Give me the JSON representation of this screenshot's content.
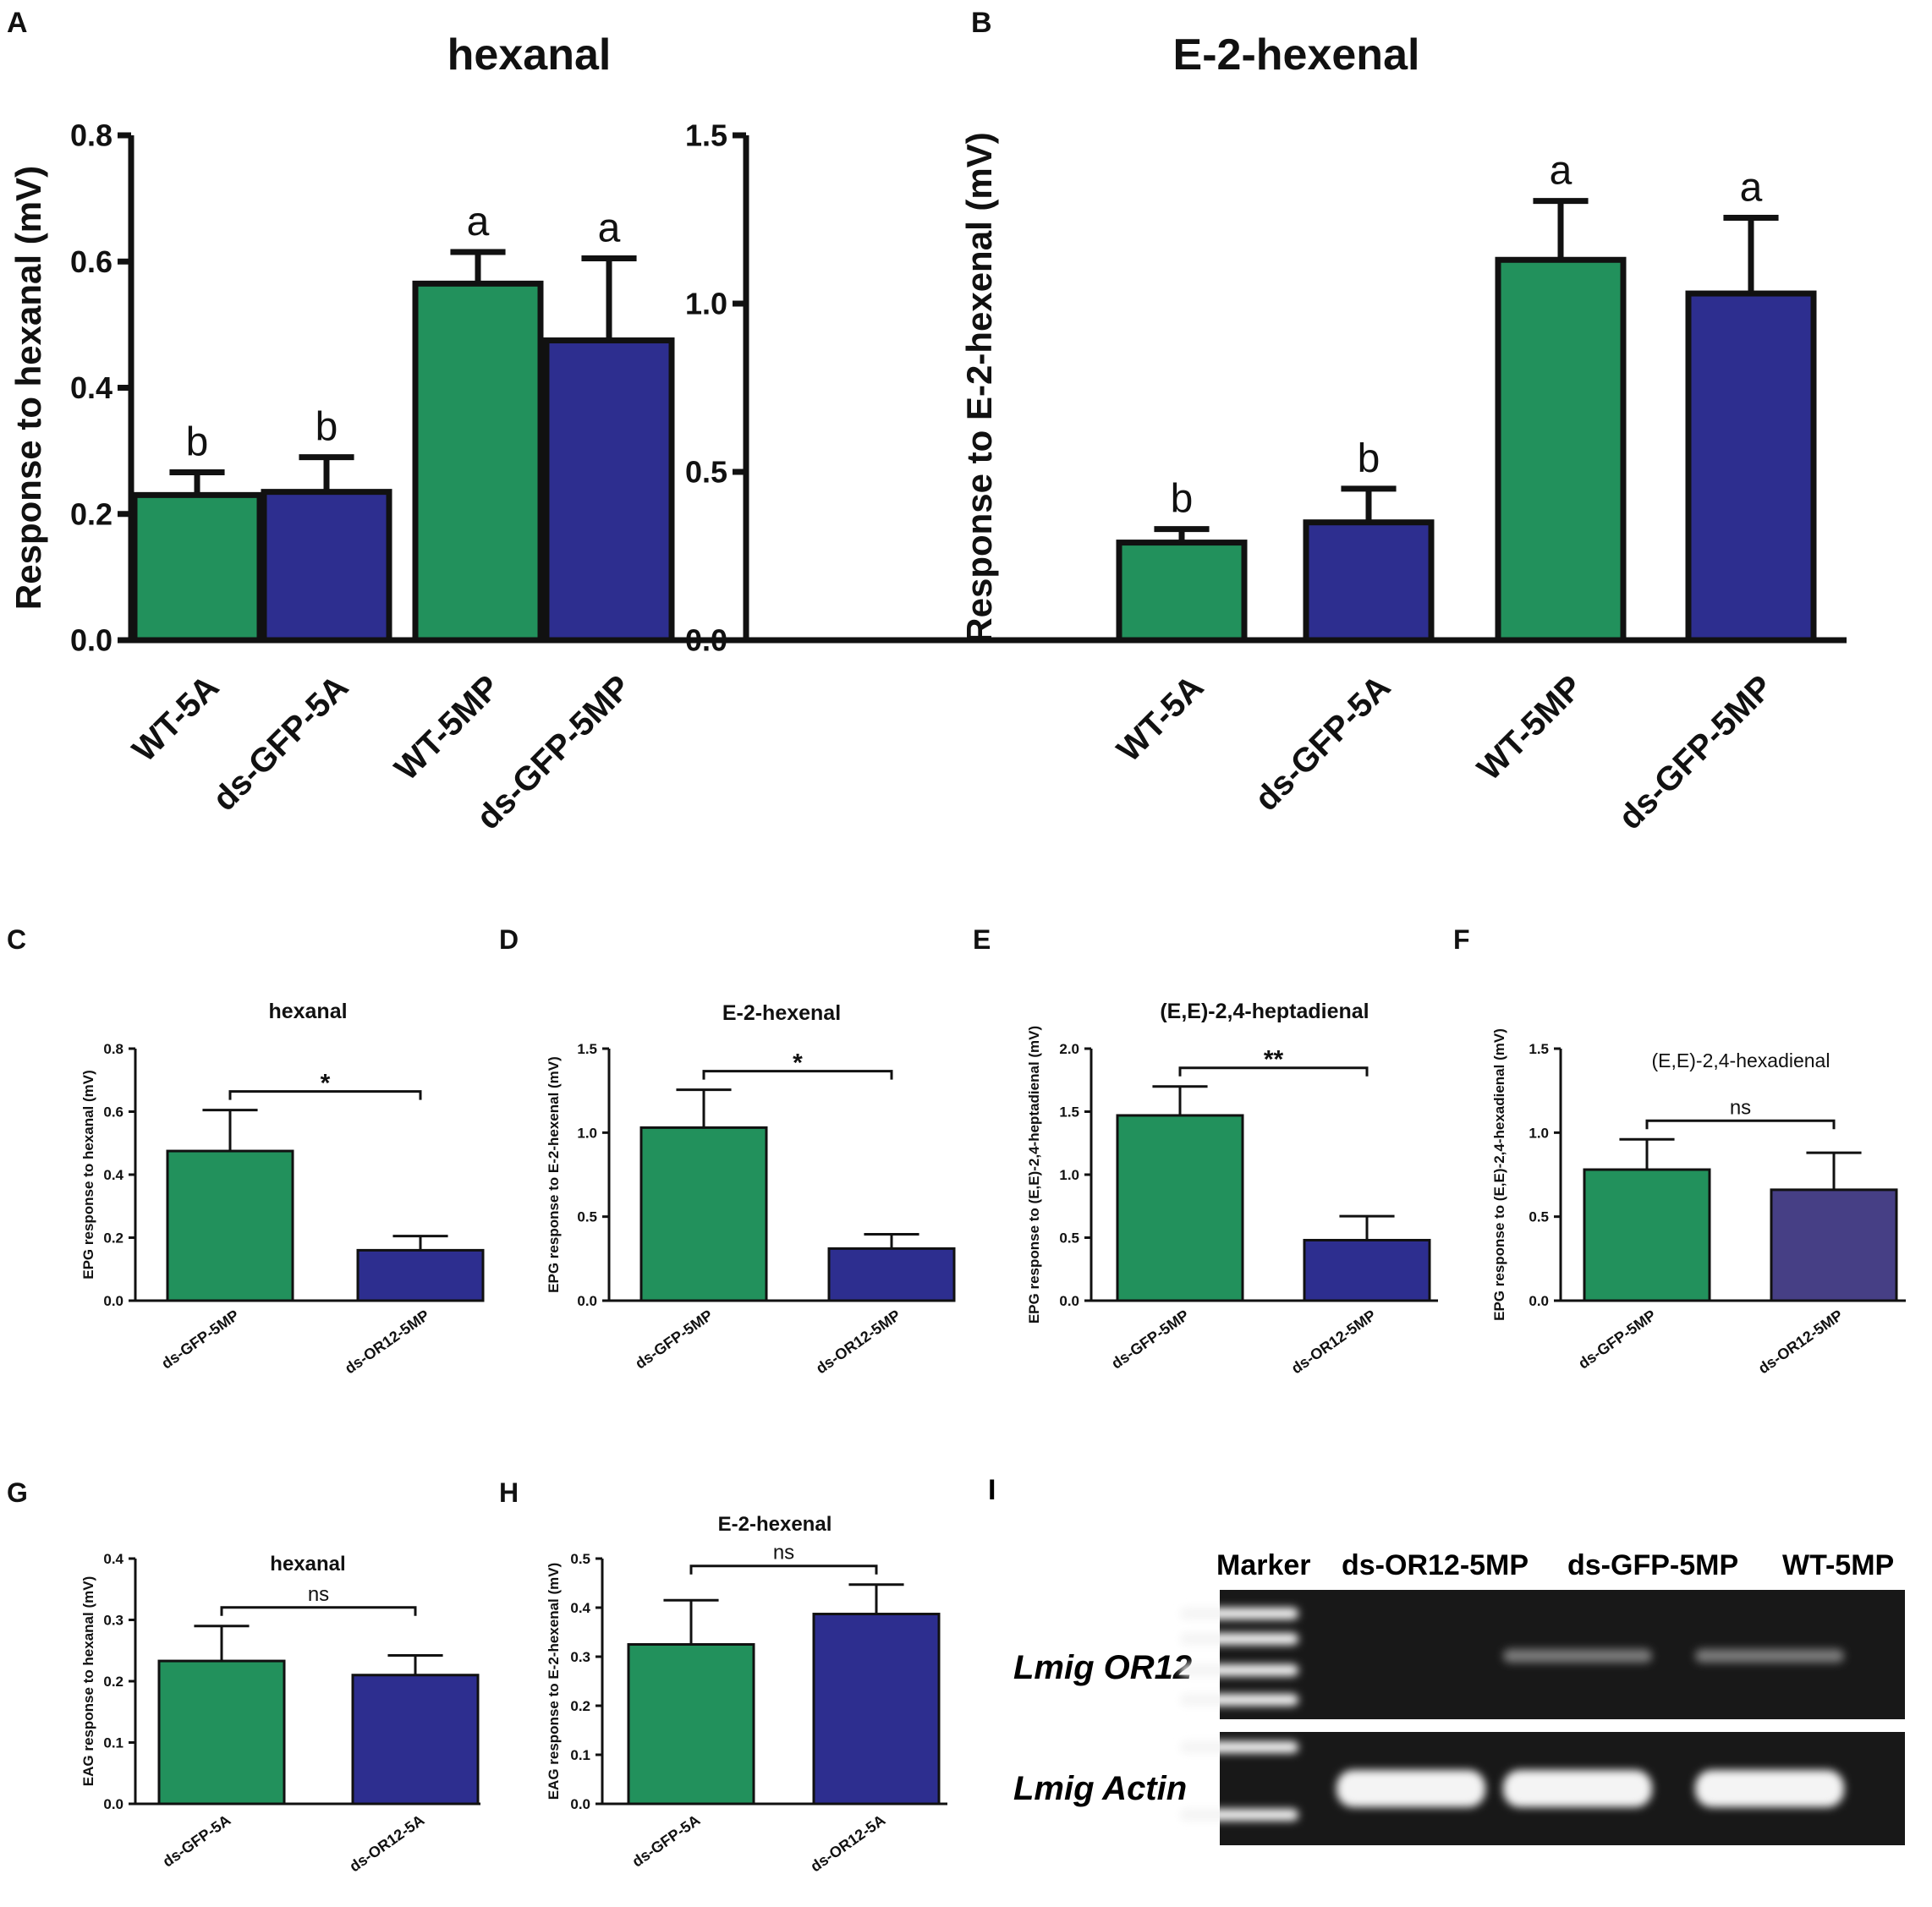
{
  "colors": {
    "green": "#22915c",
    "blue": "#2d2e8f",
    "purple": "#463f85",
    "axis": "#111111",
    "gel_bg": "#181818",
    "band": "#f4f4f4"
  },
  "chart_data": [
    {
      "panel": "A",
      "type": "bar",
      "title": "hexanal",
      "ylabel": "Response to hexanal (mV)",
      "xlabel": "",
      "categories": [
        "WT-5A",
        "ds-GFP-5A",
        "WT-5MP",
        "ds-GFP-5MP"
      ],
      "values": [
        0.23,
        0.235,
        0.565,
        0.475
      ],
      "errors": [
        0.036,
        0.055,
        0.05,
        0.13
      ],
      "bar_colors": [
        "green",
        "blue",
        "green",
        "blue"
      ],
      "letters": [
        "b",
        "b",
        "a",
        "a"
      ],
      "ylim": [
        0,
        0.8
      ],
      "yticks": [
        "0.0",
        "0.2",
        "0.4",
        "0.6",
        "0.8"
      ],
      "grid": false
    },
    {
      "panel": "B",
      "type": "bar",
      "title": "E-2-hexenal",
      "ylabel": "Response to E-2-hexenal (mV)",
      "xlabel": "",
      "categories": [
        "WT-5A",
        "ds-GFP-5A",
        "WT-5MP",
        "ds-GFP-5MP"
      ],
      "values": [
        0.29,
        0.35,
        1.13,
        1.03
      ],
      "errors": [
        0.04,
        0.1,
        0.175,
        0.225
      ],
      "bar_colors": [
        "green",
        "blue",
        "green",
        "blue"
      ],
      "letters": [
        "b",
        "b",
        "a",
        "a"
      ],
      "ylim": [
        0,
        1.5
      ],
      "yticks": [
        "0.0",
        "0.5",
        "1.0",
        "1.5"
      ],
      "grid": false
    },
    {
      "panel": "C",
      "type": "bar",
      "title": "hexanal",
      "ylabel": "EPG response to hexanal (mV)",
      "xlabel": "",
      "categories": [
        "ds-GFP-5MP",
        "ds-OR12-5MP"
      ],
      "values": [
        0.475,
        0.16
      ],
      "errors": [
        0.13,
        0.045
      ],
      "bar_colors": [
        "green",
        "blue"
      ],
      "significance": "*",
      "ylim": [
        0,
        0.8
      ],
      "yticks": [
        "0.0",
        "0.2",
        "0.4",
        "0.6",
        "0.8"
      ],
      "grid": false
    },
    {
      "panel": "D",
      "type": "bar",
      "title": "E-2-hexenal",
      "ylabel": "EPG response to E-2-hexenal (mV)",
      "xlabel": "",
      "categories": [
        "ds-GFP-5MP",
        "ds-OR12-5MP"
      ],
      "values": [
        1.03,
        0.31
      ],
      "errors": [
        0.225,
        0.085
      ],
      "bar_colors": [
        "green",
        "blue"
      ],
      "significance": "*",
      "ylim": [
        0,
        1.5
      ],
      "yticks": [
        "0.0",
        "0.5",
        "1.0",
        "1.5"
      ],
      "grid": false
    },
    {
      "panel": "E",
      "type": "bar",
      "title": "(E,E)-2,4-heptadienal",
      "ylabel": "EPG response to (E,E)-2,4-heptadienal (mV)",
      "xlabel": "",
      "categories": [
        "ds-GFP-5MP",
        "ds-OR12-5MP"
      ],
      "values": [
        1.47,
        0.48
      ],
      "errors": [
        0.23,
        0.19
      ],
      "bar_colors": [
        "green",
        "blue"
      ],
      "significance": "**",
      "ylim": [
        0,
        2.0
      ],
      "yticks": [
        "0.0",
        "0.5",
        "1.0",
        "1.5",
        "2.0"
      ],
      "grid": false
    },
    {
      "panel": "F",
      "type": "bar",
      "title": "(E,E)-2,4-hexadienal",
      "ylabel": "EPG response to (E,E)-2,4-hexadienal (mV)",
      "xlabel": "",
      "categories": [
        "ds-GFP-5MP",
        "ds-OR12-5MP"
      ],
      "values": [
        0.78,
        0.66
      ],
      "errors": [
        0.18,
        0.22
      ],
      "bar_colors": [
        "green",
        "purple"
      ],
      "significance": "ns",
      "ylim": [
        0,
        1.5
      ],
      "yticks": [
        "0.0",
        "0.5",
        "1.0",
        "1.5"
      ],
      "grid": false
    },
    {
      "panel": "G",
      "type": "bar",
      "title": "hexanal",
      "ylabel": "EAG response to hexanal (mV)",
      "xlabel": "",
      "categories": [
        "ds-GFP-5A",
        "ds-OR12-5A"
      ],
      "values": [
        0.233,
        0.21
      ],
      "errors": [
        0.057,
        0.032
      ],
      "bar_colors": [
        "green",
        "blue"
      ],
      "significance": "ns",
      "ylim": [
        0,
        0.4
      ],
      "yticks": [
        "0.0",
        "0.1",
        "0.2",
        "0.3",
        "0.4"
      ],
      "grid": false
    },
    {
      "panel": "H",
      "type": "bar",
      "title": "E-2-hexenal",
      "ylabel": "EAG response to E-2-hexenal (mV)",
      "xlabel": "",
      "categories": [
        "ds-GFP-5A",
        "ds-OR12-5A"
      ],
      "values": [
        0.325,
        0.387
      ],
      "errors": [
        0.09,
        0.06
      ],
      "bar_colors": [
        "green",
        "blue"
      ],
      "significance": "ns",
      "ylim": [
        0,
        0.5
      ],
      "yticks": [
        "0.0",
        "0.1",
        "0.2",
        "0.3",
        "0.4",
        "0.5"
      ],
      "grid": false
    }
  ],
  "gel": {
    "panel": "I",
    "lanes": [
      "Marker",
      "ds-OR12-5MP",
      "ds-GFP-5MP",
      "WT-5MP"
    ],
    "rows": [
      "Lmig OR12",
      "Lmig Actin"
    ],
    "band_presence": {
      "Lmig OR12": [
        true,
        false,
        true,
        true
      ],
      "Lmig Actin": [
        true,
        true,
        true,
        true
      ]
    }
  }
}
